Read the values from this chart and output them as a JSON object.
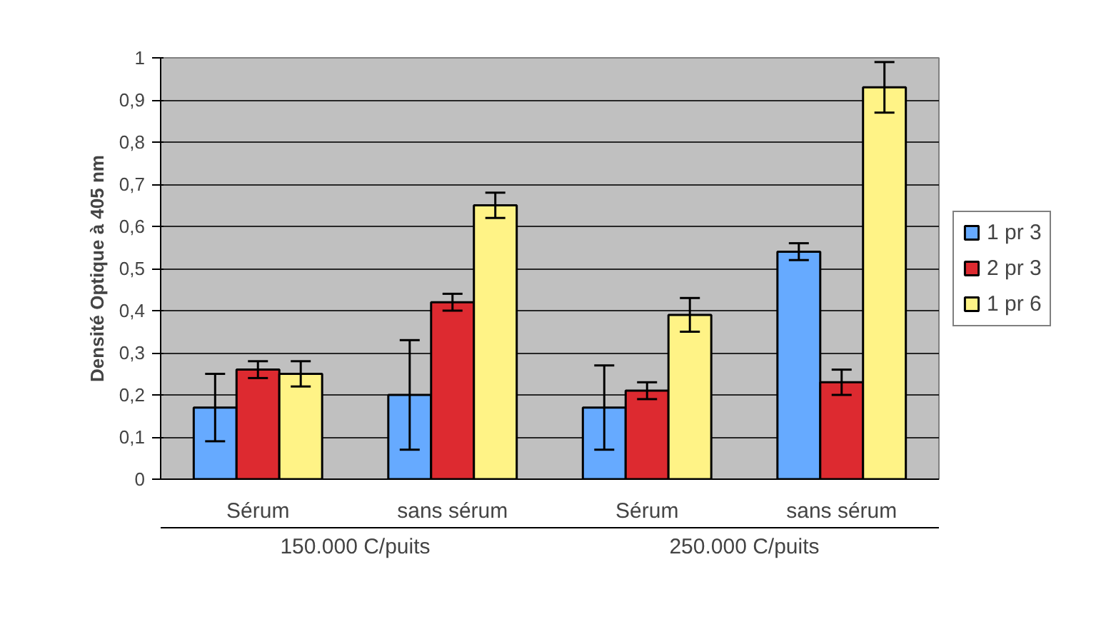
{
  "chart_data": {
    "type": "bar",
    "ylabel": "Densité Optique à 405 nm",
    "categories": [
      "Sérum",
      "sans sérum",
      "Sérum",
      "sans sérum"
    ],
    "annotations": [
      "150.000 C/puits",
      "250.000 C/puits"
    ],
    "series": [
      {
        "name": "1 pr 3",
        "color": "#66aaff",
        "values": [
          0.17,
          0.2,
          0.17,
          0.54
        ],
        "errors": [
          0.08,
          0.13,
          0.1,
          0.02
        ]
      },
      {
        "name": "2 pr 3",
        "color": "#dd2a30",
        "values": [
          0.26,
          0.42,
          0.21,
          0.23
        ],
        "errors": [
          0.02,
          0.02,
          0.02,
          0.03
        ]
      },
      {
        "name": "1 pr 6",
        "color": "#fff386",
        "values": [
          0.25,
          0.65,
          0.39,
          0.93
        ],
        "errors": [
          0.03,
          0.03,
          0.04,
          0.06
        ]
      }
    ],
    "ylim": [
      0,
      1
    ],
    "yticks": [
      0,
      {
        "value": 0.1,
        "label": "0,1"
      },
      {
        "value": 0.2,
        "label": "0,2"
      },
      {
        "value": 0.3,
        "label": "0,3"
      },
      {
        "value": 0.4,
        "label": "0,4"
      },
      {
        "value": 0.5,
        "label": "0,5"
      },
      {
        "value": 0.6,
        "label": "0,6"
      },
      {
        "value": 0.7,
        "label": "0,7"
      },
      {
        "value": 0.8,
        "label": "0,8"
      },
      {
        "value": 0.9,
        "label": "0,9"
      },
      1
    ],
    "grid": "y",
    "legend": "right"
  }
}
